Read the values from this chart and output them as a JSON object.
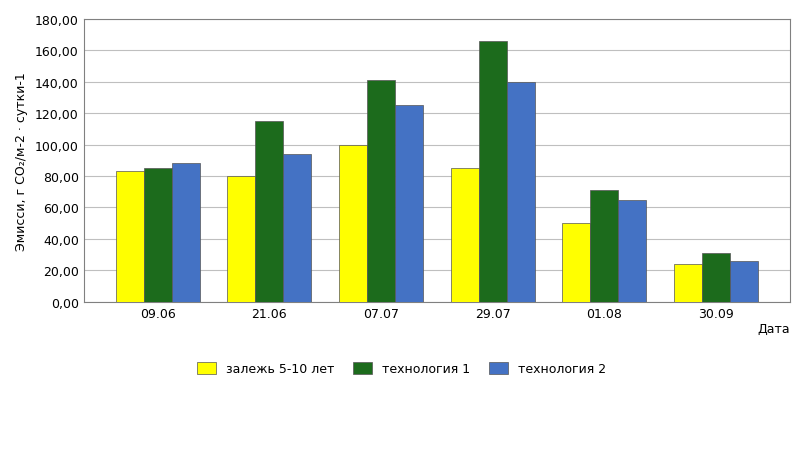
{
  "categories": [
    "09.06",
    "21.06",
    "07.07",
    "29.07",
    "01.08",
    "30.09"
  ],
  "series_0_vals": [
    83,
    80,
    100,
    85,
    50,
    24
  ],
  "series_1_vals": [
    85,
    115,
    141,
    166,
    71,
    31
  ],
  "series_2_vals": [
    88,
    94,
    125,
    140,
    65,
    26
  ],
  "legend_labels": [
    "залежь 5-10 лет",
    "технология 1",
    "технология 2"
  ],
  "legend_colors": [
    "#FFFF00",
    "#1C6B1C",
    "#4472C4"
  ],
  "ylabel": "Эмисси, г CO₂/м-2 · сутки-1",
  "xlabel": "Дата",
  "ylim": [
    0,
    180
  ],
  "yticks": [
    0,
    20,
    40,
    60,
    80,
    100,
    120,
    140,
    160,
    180
  ],
  "ytick_labels": [
    "0,00",
    "20,00",
    "40,00",
    "60,00",
    "80,00",
    "100,00",
    "120,00",
    "140,00",
    "160,00",
    "180,00"
  ],
  "bar_width": 0.25,
  "background_color": "#FFFFFF",
  "grid_color": "#BFBFBF",
  "border_color": "#808080"
}
